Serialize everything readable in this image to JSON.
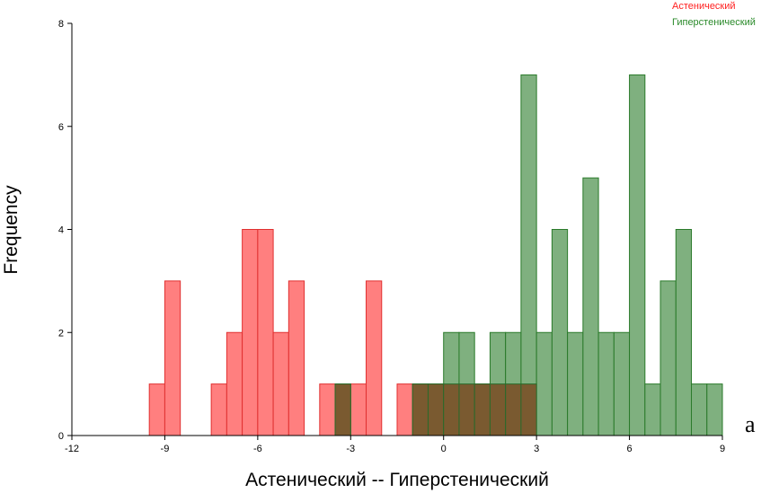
{
  "chart_data": {
    "type": "bar",
    "subtype": "overlaid-histogram",
    "xlabel": "Астенический -- Гиперстенический",
    "ylabel": "Frequency",
    "xlim": [
      -12,
      9
    ],
    "ylim": [
      0,
      8
    ],
    "xticks": [
      "-12",
      "-9",
      "-6",
      "-3",
      "0",
      "3",
      "6",
      "9"
    ],
    "yticks": [
      "0",
      "2",
      "4",
      "6",
      "8"
    ],
    "bin_width": 0.5,
    "grid": false,
    "legend_position": "top-right",
    "panel_label": "a",
    "overlap_color": "#7a5a30",
    "series": [
      {
        "name": "Астенический",
        "color": "#ff7f7f",
        "stroke": "#e03030",
        "legend_color": "#ff2020",
        "bins": [
          {
            "x0": -9.5,
            "count": 1
          },
          {
            "x0": -9.0,
            "count": 3
          },
          {
            "x0": -7.5,
            "count": 1
          },
          {
            "x0": -7.0,
            "count": 2
          },
          {
            "x0": -6.5,
            "count": 4
          },
          {
            "x0": -6.0,
            "count": 4
          },
          {
            "x0": -5.5,
            "count": 2
          },
          {
            "x0": -5.0,
            "count": 3
          },
          {
            "x0": -4.0,
            "count": 1
          },
          {
            "x0": -3.5,
            "count": 1
          },
          {
            "x0": -3.0,
            "count": 1
          },
          {
            "x0": -2.5,
            "count": 3
          },
          {
            "x0": -1.5,
            "count": 1
          },
          {
            "x0": -1.0,
            "count": 1
          },
          {
            "x0": -0.5,
            "count": 1
          },
          {
            "x0": 0.0,
            "count": 1
          },
          {
            "x0": 0.5,
            "count": 1
          },
          {
            "x0": 1.0,
            "count": 1
          },
          {
            "x0": 1.5,
            "count": 1
          },
          {
            "x0": 2.0,
            "count": 1
          },
          {
            "x0": 2.5,
            "count": 1
          }
        ]
      },
      {
        "name": "Гиперстенический",
        "color": "#7fb07f",
        "stroke": "#2a7a2a",
        "legend_color": "#2a8a2a",
        "bins": [
          {
            "x0": -3.5,
            "count": 1
          },
          {
            "x0": -1.0,
            "count": 1
          },
          {
            "x0": -0.5,
            "count": 1
          },
          {
            "x0": 0.0,
            "count": 2
          },
          {
            "x0": 0.5,
            "count": 2
          },
          {
            "x0": 1.0,
            "count": 1
          },
          {
            "x0": 1.5,
            "count": 2
          },
          {
            "x0": 2.0,
            "count": 2
          },
          {
            "x0": 2.5,
            "count": 7
          },
          {
            "x0": 3.0,
            "count": 2
          },
          {
            "x0": 3.5,
            "count": 4
          },
          {
            "x0": 4.0,
            "count": 2
          },
          {
            "x0": 4.5,
            "count": 5
          },
          {
            "x0": 5.0,
            "count": 2
          },
          {
            "x0": 5.5,
            "count": 2
          },
          {
            "x0": 6.0,
            "count": 7
          },
          {
            "x0": 6.5,
            "count": 1
          },
          {
            "x0": 7.0,
            "count": 3
          },
          {
            "x0": 7.5,
            "count": 4
          },
          {
            "x0": 8.0,
            "count": 1
          },
          {
            "x0": 8.5,
            "count": 1
          }
        ]
      }
    ]
  }
}
